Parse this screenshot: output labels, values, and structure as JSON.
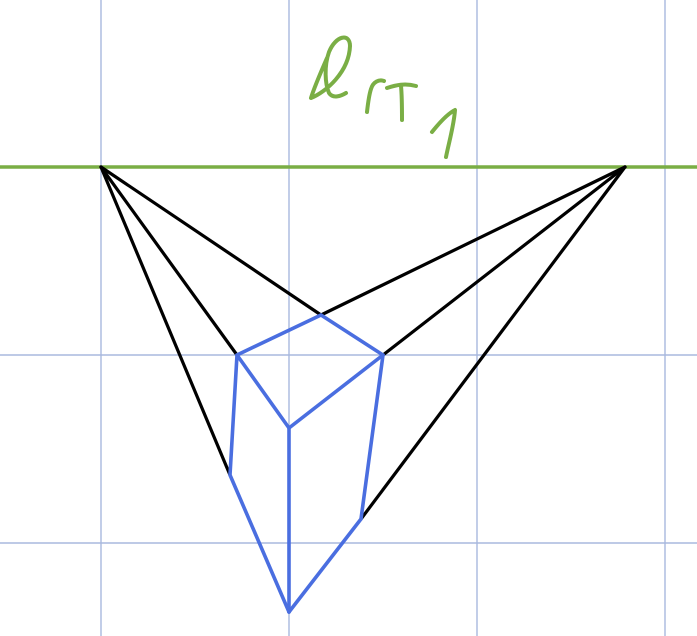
{
  "horizon_label": "l_T1",
  "colors": {
    "grid": "#a8b8de",
    "horizon": "#7aae45",
    "projectors": "#000000",
    "solid": "#4a6ee0",
    "background": "#ffffff"
  },
  "icons": {
    "horizon_label": "handwritten-label-icon"
  }
}
